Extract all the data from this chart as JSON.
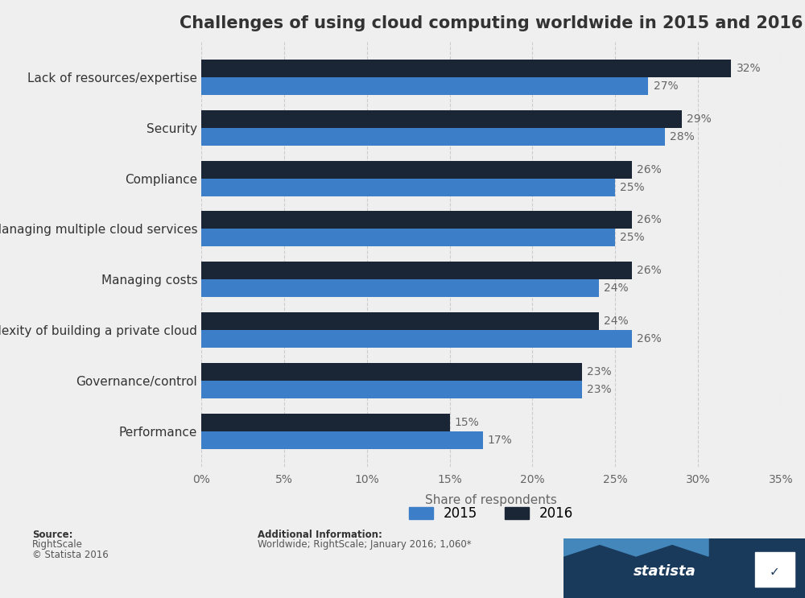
{
  "title": "Challenges of using cloud computing worldwide in 2015 and 2016",
  "categories": [
    "Lack of resources/expertise",
    "Security",
    "Compliance",
    "Managing multiple cloud services",
    "Managing costs",
    "Complexity of building a private cloud",
    "Governance/control",
    "Performance"
  ],
  "values_2016": [
    32,
    29,
    26,
    26,
    26,
    24,
    23,
    15
  ],
  "values_2015": [
    27,
    28,
    25,
    25,
    24,
    26,
    23,
    17
  ],
  "color_2016": "#1a2535",
  "color_2015": "#3d7ec8",
  "xlabel": "Share of respondents",
  "xlim": [
    0,
    35
  ],
  "xticks": [
    0,
    5,
    10,
    15,
    20,
    25,
    30,
    35
  ],
  "background_color": "#efefef",
  "plot_background": "#efefef",
  "additional_info_title": "Additional Information:",
  "additional_info": "Worldwide; RightScale; January 2016; 1,060*",
  "legend_2015": "2015",
  "legend_2016": "2016",
  "title_fontsize": 15,
  "label_fontsize": 11,
  "tick_fontsize": 10,
  "bar_height": 0.35,
  "bar_label_fontsize": 10
}
